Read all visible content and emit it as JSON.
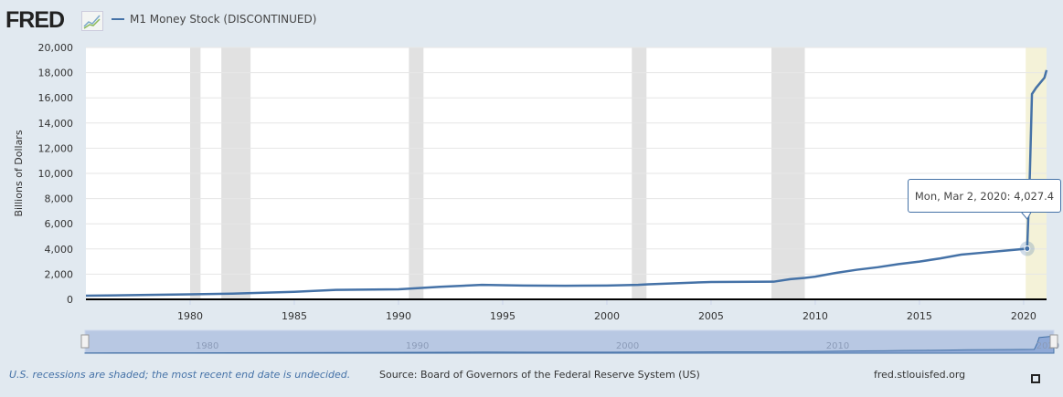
{
  "header": {
    "logo": "FRED",
    "legend": "M1 Money Stock (DISCONTINUED)",
    "series_color": "#4572a7"
  },
  "tooltip": {
    "date": "Mon, Mar 2, 2020:",
    "value": "4,027.4"
  },
  "navigator": {
    "ticks": [
      "1980",
      "1990",
      "2000",
      "2010",
      "2020"
    ]
  },
  "footer": {
    "note": "U.S. recessions are shaded; the most recent end date is undecided.",
    "source": "Source: Board of Governors of the Federal Reserve System (US)",
    "url": "fred.stlouisfed.org"
  },
  "chart_data": {
    "type": "line",
    "title": "",
    "xlabel": "",
    "ylabel": "Billions of Dollars",
    "xlim": [
      1975,
      2021.1
    ],
    "ylim": [
      0,
      20000
    ],
    "grid": true,
    "legend": "top-left",
    "x_ticks": [
      1980,
      1985,
      1990,
      1995,
      2000,
      2005,
      2010,
      2015,
      2020
    ],
    "y_ticks": [
      0,
      2000,
      4000,
      6000,
      8000,
      10000,
      12000,
      14000,
      16000,
      18000,
      20000
    ],
    "y_tick_labels": [
      "0",
      "2,000",
      "4,000",
      "6,000",
      "8,000",
      "10,000",
      "12,000",
      "14,000",
      "16,000",
      "18,000",
      "20,000"
    ],
    "recessions": [
      [
        1980.0,
        1980.5
      ],
      [
        1981.5,
        1982.9
      ],
      [
        1990.5,
        1991.2
      ],
      [
        2001.2,
        2001.9
      ],
      [
        2007.9,
        2009.5
      ]
    ],
    "recession_undecided": [
      2020.1,
      2021.1
    ],
    "series": [
      {
        "name": "M1 Money Stock (DISCONTINUED)",
        "x": [
          1975,
          1978,
          1980,
          1982,
          1985,
          1987,
          1990,
          1992,
          1994,
          1996,
          1998,
          2000,
          2001.5,
          2002,
          2005,
          2008,
          2008.8,
          2009.5,
          2010,
          2011,
          2012,
          2013,
          2014,
          2015,
          2016,
          2017,
          2018,
          2019,
          2020.17,
          2020.3,
          2020.4,
          2020.6,
          2021,
          2021.1
        ],
        "y": [
          290,
          350,
          400,
          450,
          600,
          750,
          800,
          1000,
          1150,
          1100,
          1080,
          1100,
          1150,
          1200,
          1380,
          1400,
          1600,
          1700,
          1800,
          2100,
          2350,
          2550,
          2800,
          3000,
          3250,
          3550,
          3700,
          3850,
          4027.4,
          10000,
          16300,
          16800,
          17600,
          18200
        ]
      }
    ]
  }
}
